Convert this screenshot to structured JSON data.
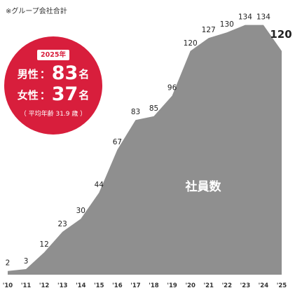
{
  "note": "※グループ会社合計",
  "badge": {
    "year": "2025年",
    "male_label": "男性",
    "male_colon": "：",
    "male_value": "83",
    "male_unit": "名",
    "female_label": "女性",
    "female_colon": "：",
    "female_value": "37",
    "female_unit": "名",
    "average_age": "（ 平均年齢 31.9 歳 ）",
    "color": "#d81e3c"
  },
  "chart_data": {
    "type": "area",
    "title": "",
    "xlabel": "",
    "ylabel": "",
    "series_label": "社員数",
    "categories": [
      "'10",
      "'11",
      "'12",
      "'13",
      "'14",
      "'15",
      "'16",
      "'17",
      "'18",
      "'19",
      "'20",
      "'21",
      "'22",
      "'23",
      "'24",
      "'25"
    ],
    "x": [
      2010,
      2011,
      2012,
      2013,
      2014,
      2015,
      2016,
      2017,
      2018,
      2019,
      2020,
      2021,
      2022,
      2023,
      2023.5,
      2024,
      2025
    ],
    "values": [
      2,
      3,
      12,
      23,
      30,
      44,
      67,
      83,
      85,
      96,
      120,
      127,
      130,
      134,
      134,
      134,
      120
    ],
    "value_labels": [
      "2",
      "3",
      "12",
      "23",
      "30",
      "44",
      "67",
      "83",
      "85",
      "96",
      "120",
      "127",
      "130",
      "134",
      "",
      "134",
      "120"
    ],
    "highlight_last": true,
    "ylim": [
      0,
      134
    ],
    "grid": false,
    "fill_color": "#8f8f8f"
  }
}
